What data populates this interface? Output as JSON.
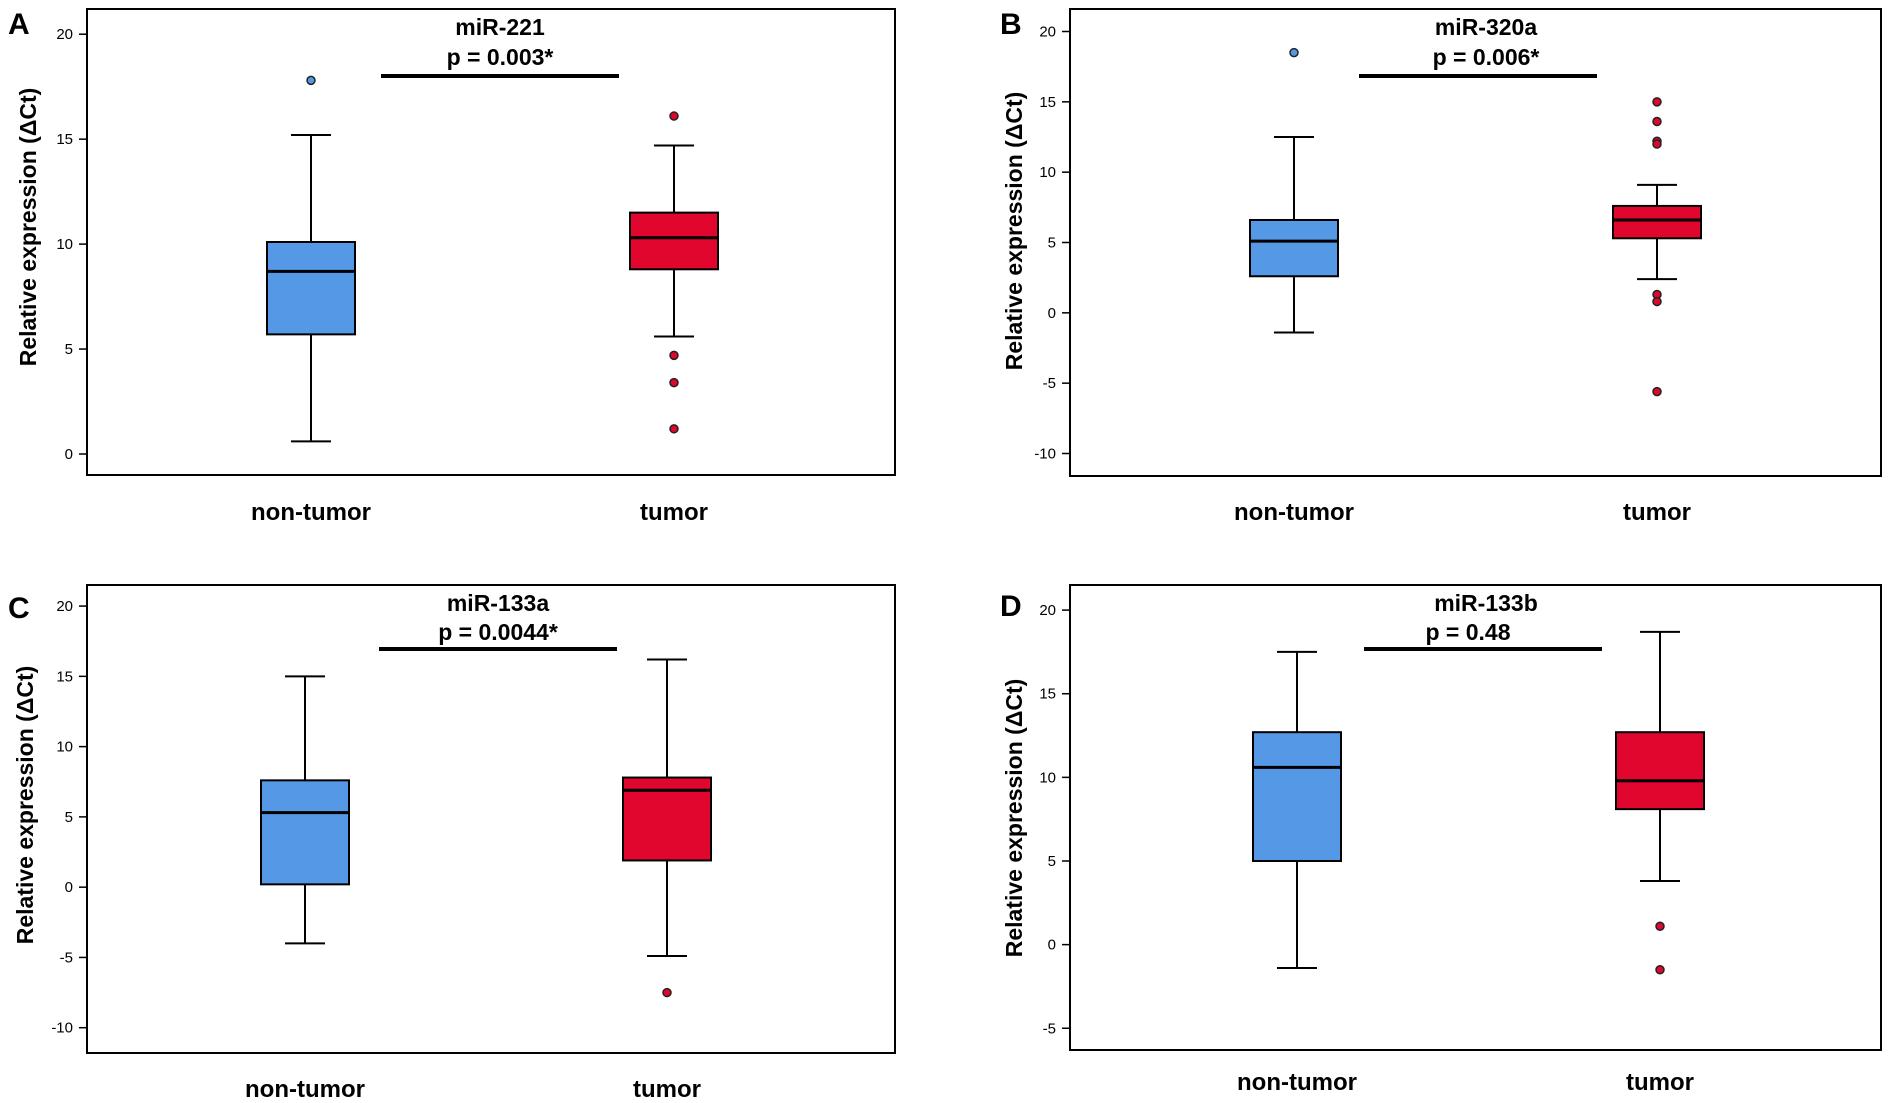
{
  "figure": {
    "ylabel": "Relative expression (ΔCt)"
  },
  "colors": {
    "non_tumor": "#5599e6",
    "tumor": "#e0062e",
    "line": "#000000"
  },
  "chart_data": [
    {
      "type": "boxplot",
      "panel": "A",
      "title": "miR-221",
      "pvalue": "p = 0.003*",
      "ylabel": "Relative expression (ΔCt)",
      "categories": [
        "non-tumor",
        "tumor"
      ],
      "yticks": [
        "0",
        "5",
        "10",
        "15",
        "20"
      ],
      "ylim": [
        -1,
        21.2
      ],
      "boxes": [
        {
          "group": "non-tumor",
          "whisker_low": 0.6,
          "q1": 5.7,
          "median": 8.7,
          "q3": 10.1,
          "whisker_high": 15.2,
          "outliers": [
            17.8
          ]
        },
        {
          "group": "tumor",
          "whisker_low": 5.6,
          "q1": 8.8,
          "median": 10.3,
          "q3": 11.5,
          "whisker_high": 14.7,
          "outliers": [
            16.1,
            4.7,
            3.4,
            1.2
          ]
        }
      ]
    },
    {
      "type": "boxplot",
      "panel": "B",
      "title": "miR-320a",
      "pvalue": "p = 0.006*",
      "ylabel": "Relative expression (ΔCt)",
      "categories": [
        "non-tumor",
        "tumor"
      ],
      "yticks": [
        "-10",
        "-5",
        "0",
        "5",
        "10",
        "15",
        "20"
      ],
      "ylim": [
        -11.6,
        21.6
      ],
      "boxes": [
        {
          "group": "non-tumor",
          "whisker_low": -1.4,
          "q1": 2.6,
          "median": 5.1,
          "q3": 6.6,
          "whisker_high": 12.5,
          "outliers": [
            18.5
          ]
        },
        {
          "group": "tumor",
          "whisker_low": 2.4,
          "q1": 5.3,
          "median": 6.6,
          "q3": 7.6,
          "whisker_high": 9.1,
          "outliers": [
            15.0,
            13.6,
            12.2,
            12.0,
            1.3,
            0.8,
            -5.6
          ]
        }
      ]
    },
    {
      "type": "boxplot",
      "panel": "C",
      "title": "miR-133a",
      "pvalue": "p = 0.0044*",
      "ylabel": "Relative expression (ΔCt)",
      "categories": [
        "non-tumor",
        "tumor"
      ],
      "yticks": [
        "-10",
        "-5",
        "0",
        "5",
        "10",
        "15",
        "20"
      ],
      "ylim": [
        -11.8,
        21.5
      ],
      "boxes": [
        {
          "group": "non-tumor",
          "whisker_low": -4.0,
          "q1": 0.2,
          "median": 5.3,
          "q3": 7.6,
          "whisker_high": 15.0,
          "outliers": []
        },
        {
          "group": "tumor",
          "whisker_low": -4.9,
          "q1": 1.9,
          "median": 6.9,
          "q3": 7.8,
          "whisker_high": 16.2,
          "outliers": [
            -7.5
          ]
        }
      ]
    },
    {
      "type": "boxplot",
      "panel": "D",
      "title": "miR-133b",
      "pvalue": "p = 0.48",
      "ylabel": "Relative expression (ΔCt)",
      "categories": [
        "non-tumor",
        "tumor"
      ],
      "yticks": [
        "-5",
        "0",
        "5",
        "10",
        "15",
        "20"
      ],
      "ylim": [
        -6.3,
        21.5
      ],
      "boxes": [
        {
          "group": "non-tumor",
          "whisker_low": -1.4,
          "q1": 5.0,
          "median": 10.6,
          "q3": 12.7,
          "whisker_high": 17.5,
          "outliers": []
        },
        {
          "group": "tumor",
          "whisker_low": 3.8,
          "q1": 8.1,
          "median": 9.8,
          "q3": 12.7,
          "whisker_high": 18.7,
          "outliers": [
            1.1,
            -1.5
          ]
        }
      ]
    }
  ]
}
